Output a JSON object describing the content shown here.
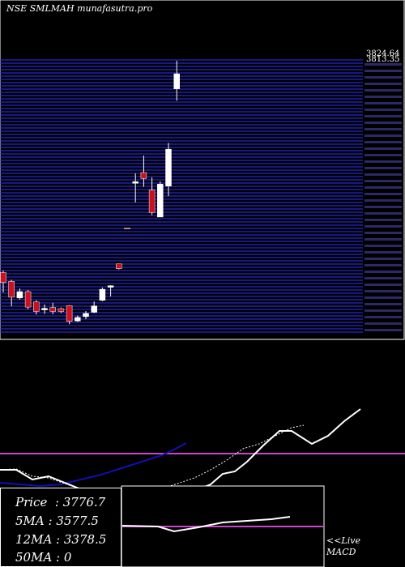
{
  "header": {
    "title": "NSE SMLMAH munafasutra.pro"
  },
  "info": {
    "price_label": "Price",
    "price": "3776.7",
    "ma5_label": "5MA",
    "ma5": "3577.5",
    "ma12_label": "12MA",
    "ma12": "3378.5",
    "ma50_label": "50MA",
    "ma50": "0"
  },
  "macd_panel": {
    "live_label": "<<Live",
    "macd_label": "MACD"
  },
  "colors": {
    "background": "#000000",
    "grid": "#3030ff",
    "candle_up": "#ffffff",
    "candle_down": "#cc1020",
    "ma5": "#ffffff",
    "ma12": "#ffffff",
    "ma_blue": "#1010b0",
    "signal_line": "#cc44cc"
  },
  "chart_data": {
    "type": "candlestick",
    "y_tick_labels": [
      "3824.64",
      "3813.35"
    ],
    "candles": [
      {
        "o": 3290,
        "h": 3295,
        "c": 3265,
        "l": 3240
      },
      {
        "o": 3268,
        "h": 3272,
        "c": 3228,
        "l": 3205
      },
      {
        "o": 3226,
        "h": 3250,
        "c": 3242,
        "l": 3222
      },
      {
        "o": 3242,
        "h": 3246,
        "c": 3203,
        "l": 3198
      },
      {
        "o": 3216,
        "h": 3220,
        "c": 3192,
        "l": 3184
      },
      {
        "o": 3196,
        "h": 3210,
        "c": 3200,
        "l": 3186
      },
      {
        "o": 3202,
        "h": 3214,
        "c": 3192,
        "l": 3185
      },
      {
        "o": 3199,
        "h": 3202,
        "c": 3192,
        "l": 3188
      },
      {
        "o": 3207,
        "h": 3208,
        "c": 3167,
        "l": 3160
      },
      {
        "o": 3168,
        "h": 3182,
        "c": 3177,
        "l": 3166
      },
      {
        "o": 3179,
        "h": 3193,
        "c": 3187,
        "l": 3173
      },
      {
        "o": 3190,
        "h": 3217,
        "c": 3206,
        "l": 3188
      },
      {
        "o": 3220,
        "h": 3252,
        "c": 3248,
        "l": 3218
      },
      {
        "o": 3253,
        "h": 3258,
        "c": 3257,
        "l": 3230
      },
      {
        "o": 3312,
        "h": 3312,
        "c": 3300,
        "l": 3298
      },
      {
        "o": 3402,
        "h": 3402,
        "c": 3401,
        "l": 3400
      },
      {
        "o": 3515,
        "h": 3540,
        "c": 3519,
        "l": 3467
      },
      {
        "o": 3542,
        "h": 3585,
        "c": 3527,
        "l": 3506
      },
      {
        "o": 3498,
        "h": 3530,
        "c": 3441,
        "l": 3435
      },
      {
        "o": 3430,
        "h": 3520,
        "c": 3513,
        "l": 3430
      },
      {
        "o": 3508,
        "h": 3617,
        "c": 3601,
        "l": 3483
      },
      {
        "o": 3753,
        "h": 3824,
        "c": 3791,
        "l": 3723
      }
    ],
    "ylim": [
      3140,
      3830
    ]
  }
}
